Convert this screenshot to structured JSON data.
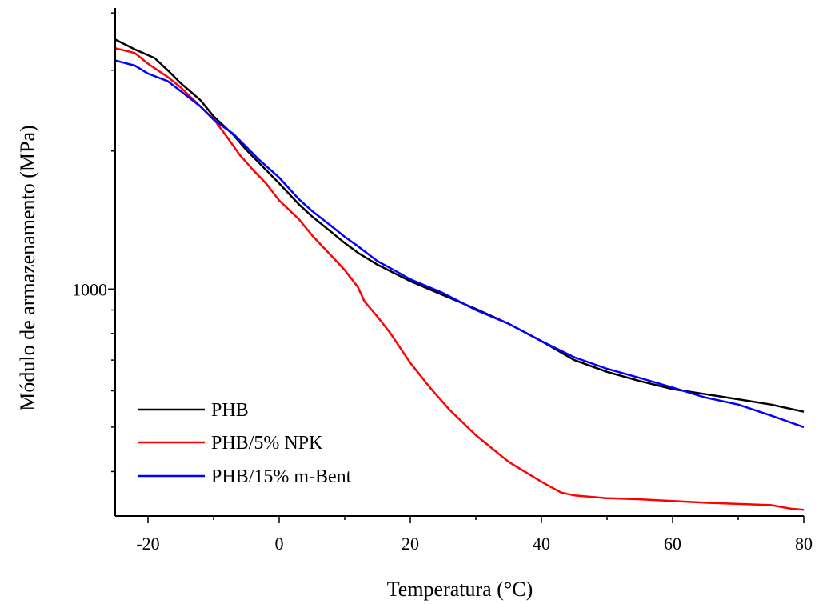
{
  "chart_data": {
    "type": "line",
    "title": "",
    "xlabel": "Temperatura (°C)",
    "ylabel": "Módulo de armazenamento (MPa)",
    "xlim": [
      -25,
      80
    ],
    "ylim": [
      320,
      4100
    ],
    "yscale": "log",
    "x_ticks": [
      -20,
      0,
      20,
      40,
      60,
      80
    ],
    "x_tick_labels": [
      "-20",
      "0",
      "20",
      "40",
      "60",
      "80"
    ],
    "y_ticks": [
      1000
    ],
    "y_tick_labels": [
      "1000"
    ],
    "grid": false,
    "legend_position": "bottom-left",
    "series": [
      {
        "name": "PHB",
        "color": "#000000",
        "x": [
          -25,
          -22,
          -19,
          -17,
          -15,
          -12,
          -10,
          -7,
          -5,
          -3,
          0,
          3,
          5,
          8,
          10,
          12,
          15,
          18,
          20,
          25,
          30,
          35,
          40,
          45,
          50,
          55,
          60,
          65,
          70,
          75,
          80
        ],
        "y": [
          3500,
          3330,
          3190,
          3000,
          2810,
          2580,
          2380,
          2170,
          2010,
          1880,
          1700,
          1530,
          1440,
          1330,
          1260,
          1200,
          1130,
          1075,
          1040,
          970,
          905,
          840,
          770,
          700,
          660,
          630,
          605,
          590,
          575,
          560,
          540
        ]
      },
      {
        "name": "PHB/5% NPK",
        "color": "#ff0000",
        "x": [
          -25,
          -22,
          -20,
          -17,
          -15,
          -13,
          -10,
          -8,
          -6,
          -4,
          -2,
          0,
          3,
          5,
          8,
          10,
          12,
          13,
          15,
          17,
          20,
          23,
          26,
          30,
          35,
          40,
          43,
          45,
          50,
          55,
          60,
          65,
          70,
          75,
          78,
          80
        ],
        "y": [
          3350,
          3270,
          3100,
          2900,
          2750,
          2580,
          2350,
          2150,
          1960,
          1820,
          1700,
          1560,
          1420,
          1310,
          1180,
          1100,
          1010,
          940,
          870,
          800,
          690,
          610,
          545,
          480,
          420,
          380,
          360,
          355,
          350,
          348,
          345,
          342,
          340,
          338,
          332,
          330
        ]
      },
      {
        "name": "PHB/15% m-Bent",
        "color": "#0000ff",
        "x": [
          -25,
          -22,
          -20,
          -17,
          -15,
          -12,
          -10,
          -7,
          -5,
          -3,
          0,
          3,
          5,
          8,
          10,
          12,
          15,
          18,
          20,
          25,
          30,
          35,
          40,
          45,
          50,
          55,
          60,
          65,
          70,
          75,
          80
        ],
        "y": [
          3150,
          3070,
          2950,
          2840,
          2700,
          2500,
          2340,
          2180,
          2040,
          1910,
          1750,
          1570,
          1480,
          1370,
          1300,
          1240,
          1150,
          1090,
          1050,
          980,
          900,
          840,
          770,
          710,
          670,
          640,
          610,
          580,
          560,
          530,
          500
        ]
      }
    ]
  }
}
